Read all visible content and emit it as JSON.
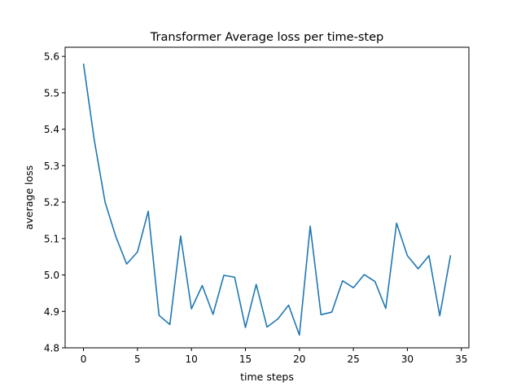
{
  "chart_data": {
    "type": "line",
    "title": "Transformer Average loss per time-step",
    "xlabel": "time steps",
    "ylabel": "average loss",
    "xlim": [
      -1.7,
      35.7
    ],
    "ylim": [
      4.8,
      5.625
    ],
    "xticks": [
      0,
      5,
      10,
      15,
      20,
      25,
      30,
      35
    ],
    "yticks": [
      4.8,
      4.9,
      5.0,
      5.1,
      5.2,
      5.3,
      5.4,
      5.5,
      5.6
    ],
    "grid": false,
    "series_color": "#1f77b4",
    "series": [
      {
        "x": [
          0,
          1,
          2,
          3,
          4,
          5,
          6,
          7,
          8,
          9,
          10,
          11,
          12,
          13,
          14,
          15,
          16,
          17,
          18,
          19,
          20,
          21,
          22,
          23,
          24,
          25,
          26,
          27,
          28,
          29,
          30,
          31,
          32,
          33,
          34
        ],
        "values": [
          5.58,
          5.37,
          5.2,
          5.105,
          5.03,
          5.063,
          5.175,
          4.889,
          4.864,
          5.107,
          4.907,
          4.971,
          4.892,
          4.999,
          4.994,
          4.856,
          4.974,
          4.857,
          4.879,
          4.917,
          4.835,
          5.134,
          4.891,
          4.898,
          4.984,
          4.965,
          5.001,
          4.982,
          4.908,
          5.142,
          5.053,
          5.017,
          5.053,
          4.888,
          5.054
        ]
      }
    ]
  }
}
